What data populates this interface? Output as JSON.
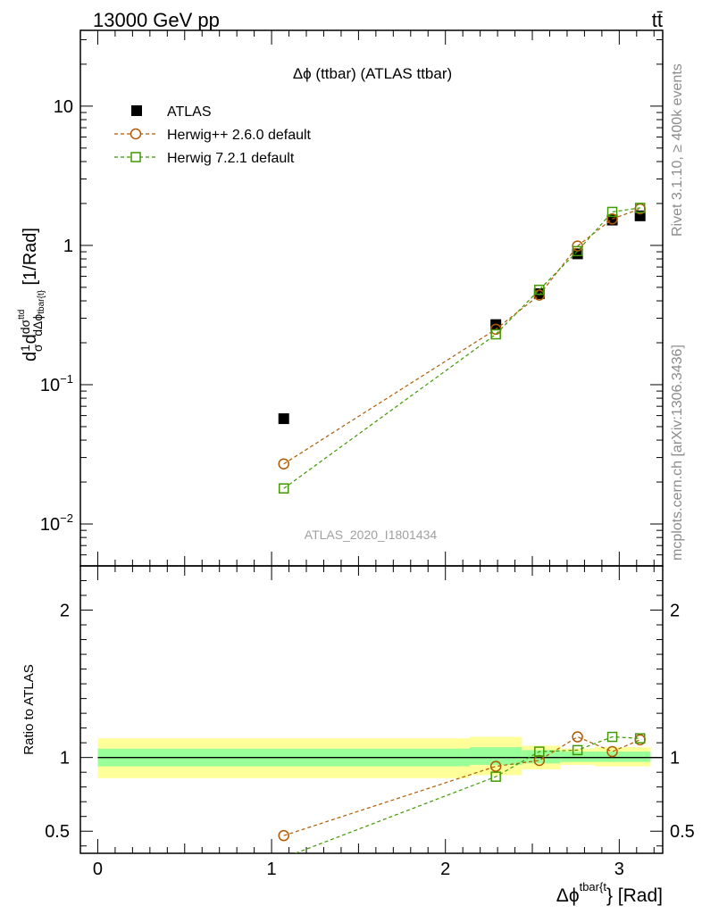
{
  "header": {
    "energy_label": "13000 GeV pp",
    "process_label": "tt̄"
  },
  "side": {
    "rivet_label": "Rivet 3.1.10, ≥ 400k events",
    "mcplots_label": "mcplots.cern.ch [arXiv:1306.3436]"
  },
  "chart_data": [
    {
      "type": "scatter",
      "title": "Δϕ (ttbar) (ATLAS ttbar)",
      "watermark": "ATLAS_2020_I1801434",
      "xlabel": "Δϕtbar{t} [Rad]",
      "ylabel": "d1σdσttdΔϕtbar{t} [1/Rad]",
      "yscale": "log",
      "xlim": [
        -0.1,
        3.25
      ],
      "ylim": [
        0.005,
        35
      ],
      "y_ticks": [
        {
          "value": 0.01,
          "label": "10−2"
        },
        {
          "value": 0.1,
          "label": "10−1"
        },
        {
          "value": 1,
          "label": "1"
        },
        {
          "value": 10,
          "label": "10"
        }
      ],
      "legend_position": "top-left",
      "series": [
        {
          "name": "ATLAS",
          "marker": "filled-square",
          "color": "#000000",
          "x": [
            1.07,
            2.29,
            2.54,
            2.76,
            2.96,
            3.12
          ],
          "y": [
            0.057,
            0.27,
            0.45,
            0.87,
            1.52,
            1.63
          ]
        },
        {
          "name": "Herwig++ 2.6.0 default",
          "marker": "open-circle",
          "line": "dashed",
          "color": "#b35900",
          "x": [
            1.07,
            2.29,
            2.54,
            2.76,
            2.96,
            3.12
          ],
          "y": [
            0.027,
            0.25,
            0.44,
            0.99,
            1.55,
            1.83
          ]
        },
        {
          "name": "Herwig 7.2.1 default",
          "marker": "open-square",
          "line": "dashed",
          "color": "#3f9900",
          "x": [
            1.07,
            2.29,
            2.54,
            2.76,
            2.96,
            3.12
          ],
          "y": [
            0.018,
            0.23,
            0.48,
            0.91,
            1.74,
            1.86
          ]
        }
      ]
    },
    {
      "type": "scatter",
      "ylabel": "Ratio to ATLAS",
      "xlabel": "Δϕtbar{t} [Rad]",
      "xlim": [
        -0.1,
        3.25
      ],
      "ylim": [
        0.35,
        2.3
      ],
      "x_ticks": [
        0,
        1,
        2,
        3
      ],
      "y_ticks": [
        0.5,
        1,
        2
      ],
      "reference_line": 1,
      "bands": [
        {
          "x0": 0.0,
          "x1": 2.14,
          "green": [
            0.94,
            1.06
          ],
          "yellow": [
            0.86,
            1.13
          ]
        },
        {
          "x0": 2.14,
          "x1": 2.44,
          "green": [
            0.95,
            1.07
          ],
          "yellow": [
            0.88,
            1.14
          ]
        },
        {
          "x0": 2.44,
          "x1": 2.66,
          "green": [
            0.96,
            1.05
          ],
          "yellow": [
            0.92,
            1.08
          ]
        },
        {
          "x0": 2.66,
          "x1": 2.86,
          "green": [
            0.97,
            1.04
          ],
          "yellow": [
            0.95,
            1.06
          ]
        },
        {
          "x0": 2.86,
          "x1": 3.18,
          "green": [
            0.97,
            1.04
          ],
          "yellow": [
            0.94,
            1.07
          ]
        }
      ],
      "series": [
        {
          "name": "Herwig++ 2.6.0 default",
          "marker": "open-circle",
          "color": "#b35900",
          "x": [
            1.07,
            2.29,
            2.54,
            2.76,
            2.96,
            3.12
          ],
          "y": [
            0.47,
            0.94,
            0.98,
            1.14,
            1.04,
            1.12
          ]
        },
        {
          "name": "Herwig 7.2.1 default",
          "marker": "open-square",
          "color": "#3f9900",
          "x": [
            1.07,
            2.29,
            2.54,
            2.76,
            2.96,
            3.12
          ],
          "y": [
            0.32,
            0.87,
            1.04,
            1.05,
            1.14,
            1.13
          ]
        }
      ]
    }
  ]
}
